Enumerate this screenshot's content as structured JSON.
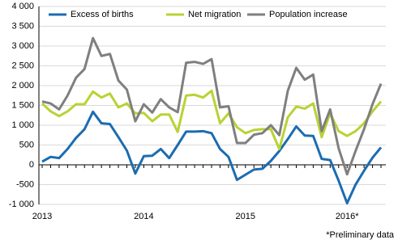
{
  "chart_data": {
    "type": "line",
    "categories": [
      "2013",
      null,
      null,
      null,
      null,
      null,
      null,
      null,
      null,
      null,
      null,
      null,
      "2014",
      null,
      null,
      null,
      null,
      null,
      null,
      null,
      null,
      null,
      null,
      null,
      "2015",
      null,
      null,
      null,
      null,
      null,
      null,
      null,
      null,
      null,
      null,
      null,
      "2016*",
      null,
      null,
      null,
      null
    ],
    "series": [
      {
        "name": "Excess of births",
        "color": "#1c6cb0",
        "values": [
          80,
          200,
          170,
          400,
          680,
          900,
          1340,
          1050,
          1030,
          700,
          360,
          -220,
          220,
          230,
          400,
          170,
          500,
          840,
          840,
          850,
          800,
          400,
          200,
          -380,
          -250,
          -120,
          -100,
          100,
          350,
          650,
          970,
          740,
          730,
          150,
          120,
          -400,
          -970,
          -500,
          -150,
          180,
          440
        ]
      },
      {
        "name": "Net migration",
        "color": "#b7d334",
        "values": [
          1550,
          1350,
          1230,
          1350,
          1530,
          1530,
          1850,
          1700,
          1800,
          1450,
          1550,
          1300,
          1310,
          1100,
          1270,
          1270,
          830,
          1750,
          1770,
          1700,
          1870,
          1050,
          1300,
          950,
          800,
          880,
          900,
          900,
          400,
          1200,
          1470,
          1420,
          1550,
          700,
          1300,
          850,
          730,
          850,
          1050,
          1350,
          1600
        ]
      },
      {
        "name": "Population increase",
        "color": "#7f7f7f",
        "values": [
          1600,
          1550,
          1400,
          1750,
          2200,
          2420,
          3200,
          2750,
          2800,
          2130,
          1900,
          1100,
          1530,
          1320,
          1660,
          1450,
          1330,
          2580,
          2600,
          2550,
          2670,
          1450,
          1480,
          550,
          550,
          760,
          800,
          1000,
          750,
          1870,
          2450,
          2150,
          2280,
          850,
          1400,
          420,
          -240,
          350,
          900,
          1530,
          2050
        ]
      }
    ],
    "ylim": [
      -1000,
      4000
    ],
    "yticks": [
      {
        "value": -1000,
        "label": "-1 000"
      },
      {
        "value": -500,
        "label": "-500"
      },
      0,
      500,
      {
        "value": 1000,
        "label": "1 000"
      },
      {
        "value": 1500,
        "label": "1 500"
      },
      {
        "value": 2000,
        "label": "2 000"
      },
      {
        "value": 2500,
        "label": "2 500"
      },
      {
        "value": 3000,
        "label": "3 000"
      },
      {
        "value": 3500,
        "label": "3 500"
      },
      {
        "value": 4000,
        "label": "4 000"
      }
    ],
    "grid": true,
    "legend": "top",
    "footnote": "*Preliminary data"
  }
}
